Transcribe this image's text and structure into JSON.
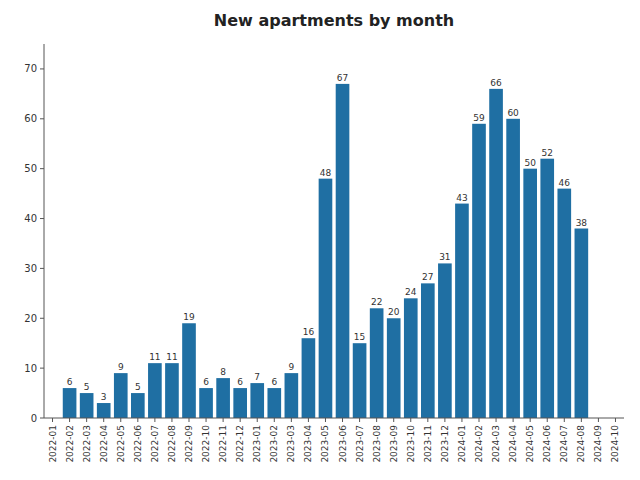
{
  "chart_data": {
    "type": "bar",
    "title": "New apartments by month",
    "categories": [
      "2022-01",
      "2022-02",
      "2022-03",
      "2022-04",
      "2022-05",
      "2022-06",
      "2022-07",
      "2022-08",
      "2022-09",
      "2022-10",
      "2022-11",
      "2022-12",
      "2023-01",
      "2023-02",
      "2023-03",
      "2023-04",
      "2023-05",
      "2023-06",
      "2023-07",
      "2023-08",
      "2023-09",
      "2023-10",
      "2023-11",
      "2023-12",
      "2024-01",
      "2024-02",
      "2024-03",
      "2024-04",
      "2024-05",
      "2024-06",
      "2024-07",
      "2024-08",
      "2024-09",
      "2024-10"
    ],
    "values": [
      0,
      6,
      5,
      3,
      9,
      5,
      11,
      11,
      19,
      6,
      8,
      6,
      7,
      6,
      9,
      16,
      48,
      67,
      15,
      22,
      20,
      24,
      27,
      31,
      43,
      59,
      66,
      60,
      50,
      52,
      46,
      38,
      0,
      0
    ],
    "color": "#1f6fa3",
    "ylim": [
      0,
      75
    ],
    "yticks": [
      0,
      10,
      20,
      30,
      40,
      50,
      60,
      70
    ],
    "data_labels": true,
    "grid": false
  }
}
